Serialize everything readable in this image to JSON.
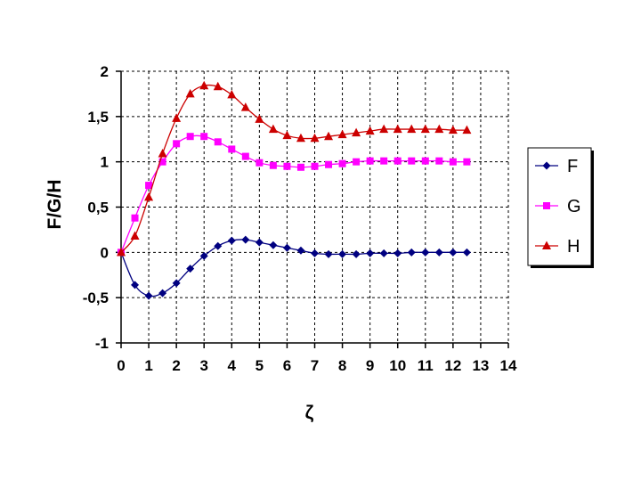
{
  "chart_data": {
    "type": "line",
    "xlabel": "ζ",
    "ylabel": "F/G/H",
    "xlim": [
      0,
      14
    ],
    "ylim": [
      -1,
      2
    ],
    "grid": true,
    "legend_position": "right",
    "x_ticks": [
      "0",
      "1",
      "2",
      "3",
      "4",
      "5",
      "6",
      "7",
      "8",
      "9",
      "10",
      "11",
      "12",
      "13",
      "14"
    ],
    "y_ticks": [
      "-1",
      "-0,5",
      "0",
      "0,5",
      "1",
      "1,5",
      "2"
    ],
    "x": [
      0,
      0.5,
      1,
      1.5,
      2,
      2.5,
      3,
      3.5,
      4,
      4.5,
      5,
      5.5,
      6,
      6.5,
      7,
      7.5,
      8,
      8.5,
      9,
      9.5,
      10,
      10.5,
      11,
      11.5,
      12,
      12.5
    ],
    "series": [
      {
        "name": "F",
        "color": "#000080",
        "marker": "diamond",
        "values": [
          0,
          -0.36,
          -0.48,
          -0.45,
          -0.34,
          -0.18,
          -0.04,
          0.07,
          0.13,
          0.14,
          0.11,
          0.08,
          0.05,
          0.02,
          -0.01,
          -0.02,
          -0.02,
          -0.02,
          -0.01,
          -0.01,
          -0.01,
          0,
          0,
          0,
          0,
          0
        ]
      },
      {
        "name": "G",
        "color": "#FF00FF",
        "marker": "square",
        "values": [
          0,
          0.38,
          0.74,
          1.0,
          1.2,
          1.28,
          1.28,
          1.22,
          1.14,
          1.06,
          0.99,
          0.96,
          0.95,
          0.94,
          0.95,
          0.97,
          0.98,
          1.0,
          1.01,
          1.01,
          1.01,
          1.01,
          1.01,
          1.01,
          1.0,
          1.0
        ]
      },
      {
        "name": "H",
        "color": "#CC0000",
        "marker": "triangle",
        "values": [
          0,
          0.18,
          0.61,
          1.09,
          1.48,
          1.75,
          1.84,
          1.83,
          1.74,
          1.6,
          1.47,
          1.36,
          1.29,
          1.26,
          1.26,
          1.28,
          1.3,
          1.32,
          1.34,
          1.36,
          1.36,
          1.36,
          1.36,
          1.36,
          1.35,
          1.35
        ]
      }
    ]
  }
}
